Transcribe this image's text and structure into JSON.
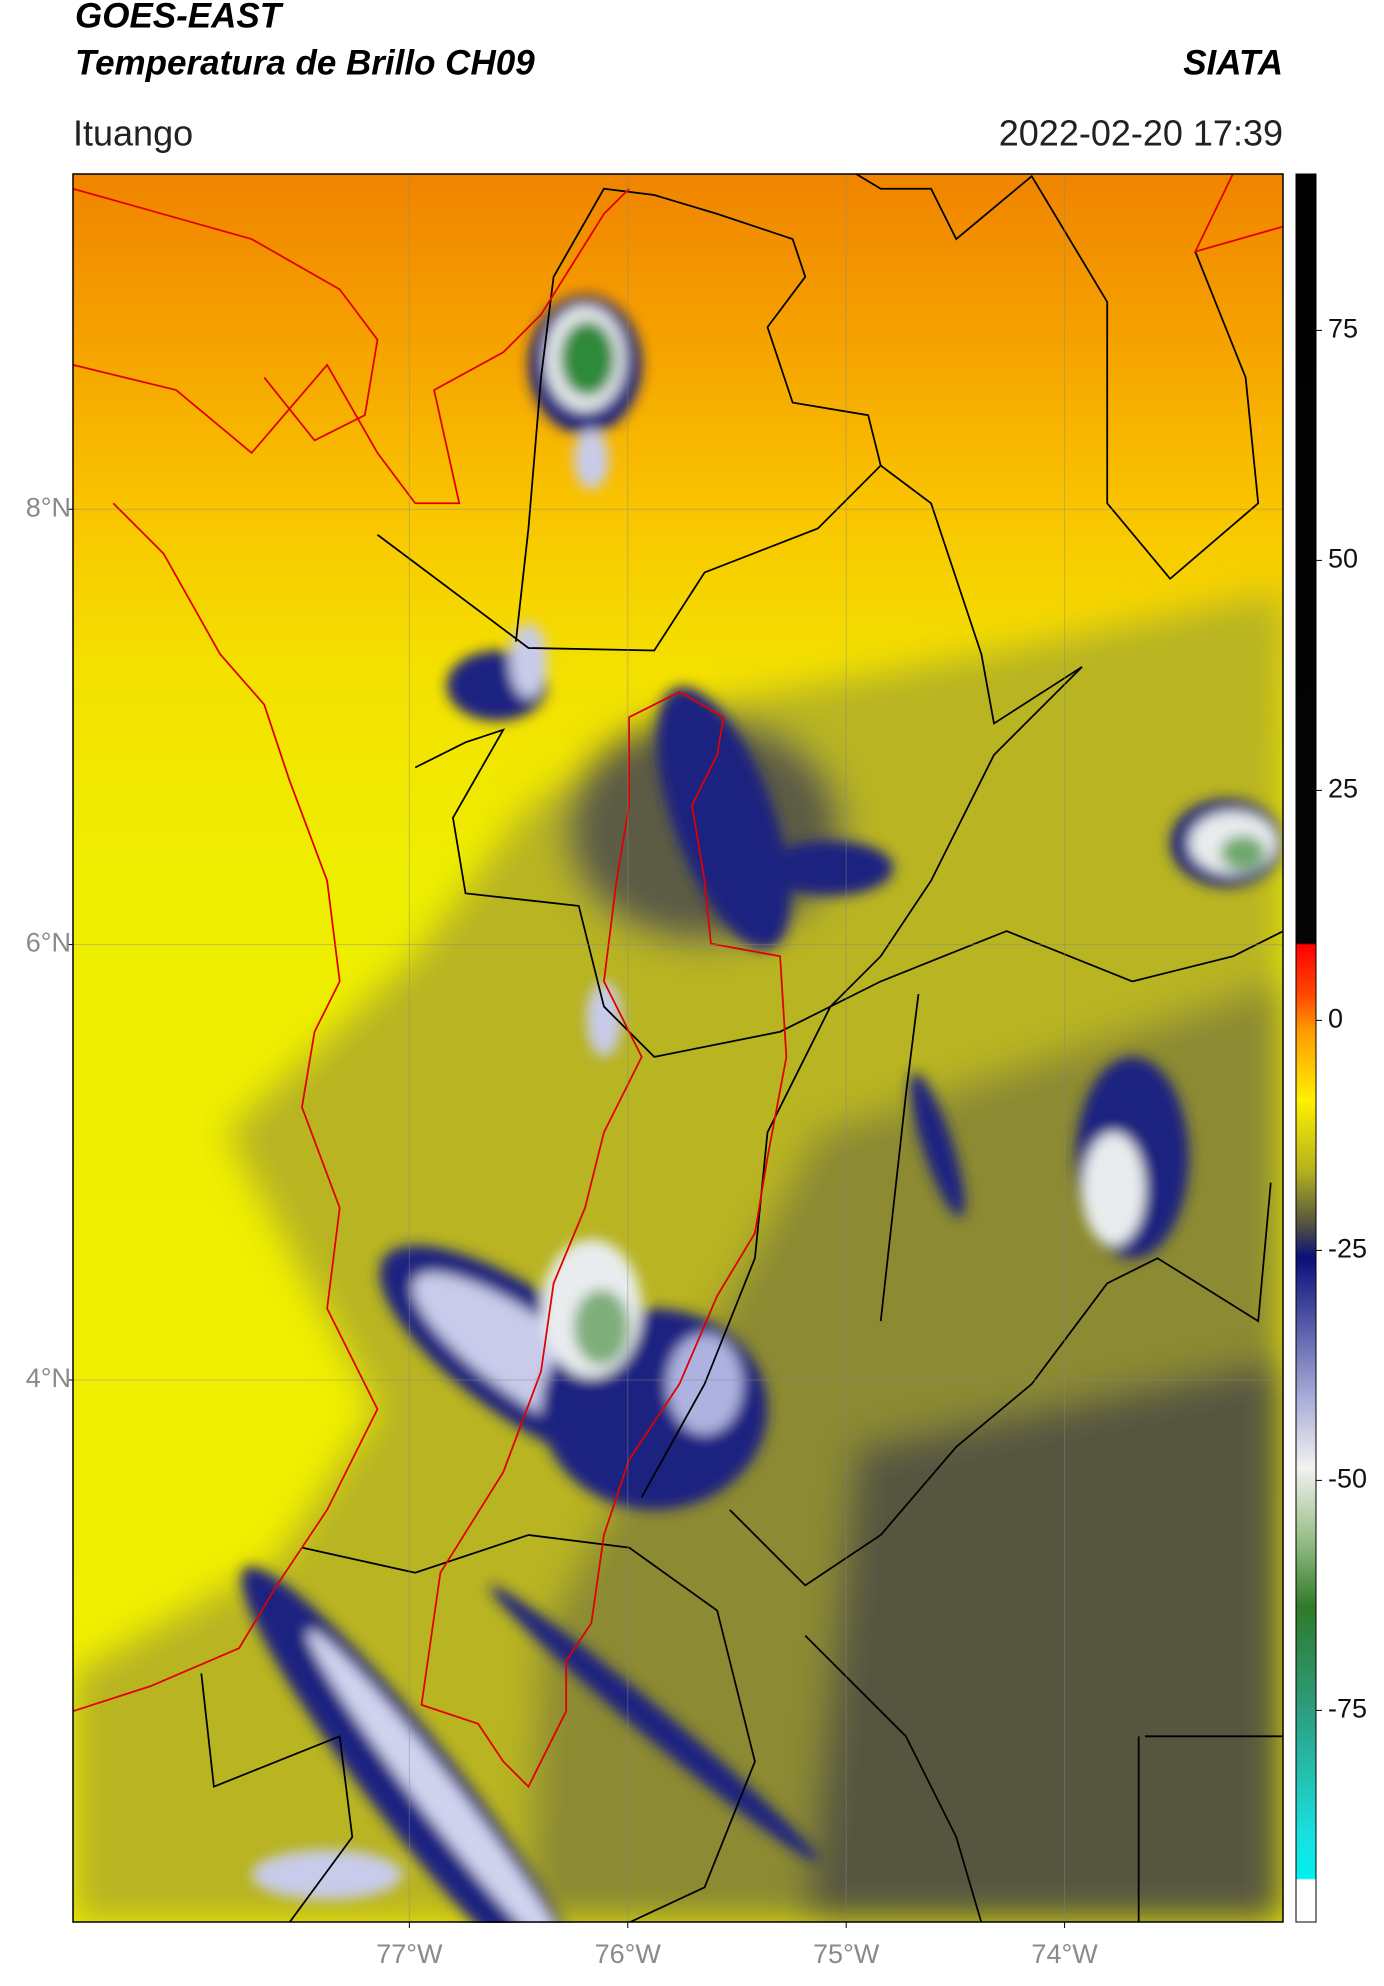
{
  "header": {
    "title": "GOES-EAST",
    "subtitle": "Temperatura de Brillo CH09",
    "source": "SIATA",
    "location": "Ituango",
    "datetime": "2022-02-20 17:39"
  },
  "map": {
    "xlim": [
      -78.54,
      -73.0
    ],
    "ylim": [
      1.51,
      9.54
    ],
    "xticks": [
      {
        "value": -77,
        "label": "77°W"
      },
      {
        "value": -76,
        "label": "76°W"
      },
      {
        "value": -75,
        "label": "75°W"
      },
      {
        "value": -74,
        "label": "74°W"
      }
    ],
    "yticks": [
      {
        "value": 8,
        "label": "8°N"
      },
      {
        "value": 6,
        "label": "6°N"
      },
      {
        "value": 4,
        "label": "4°N"
      }
    ],
    "grid": true
  },
  "colorbar": {
    "ylim": [
      -98,
      92
    ],
    "ticks": [
      75,
      50,
      25,
      0,
      -25,
      -50,
      -75
    ]
  }
}
